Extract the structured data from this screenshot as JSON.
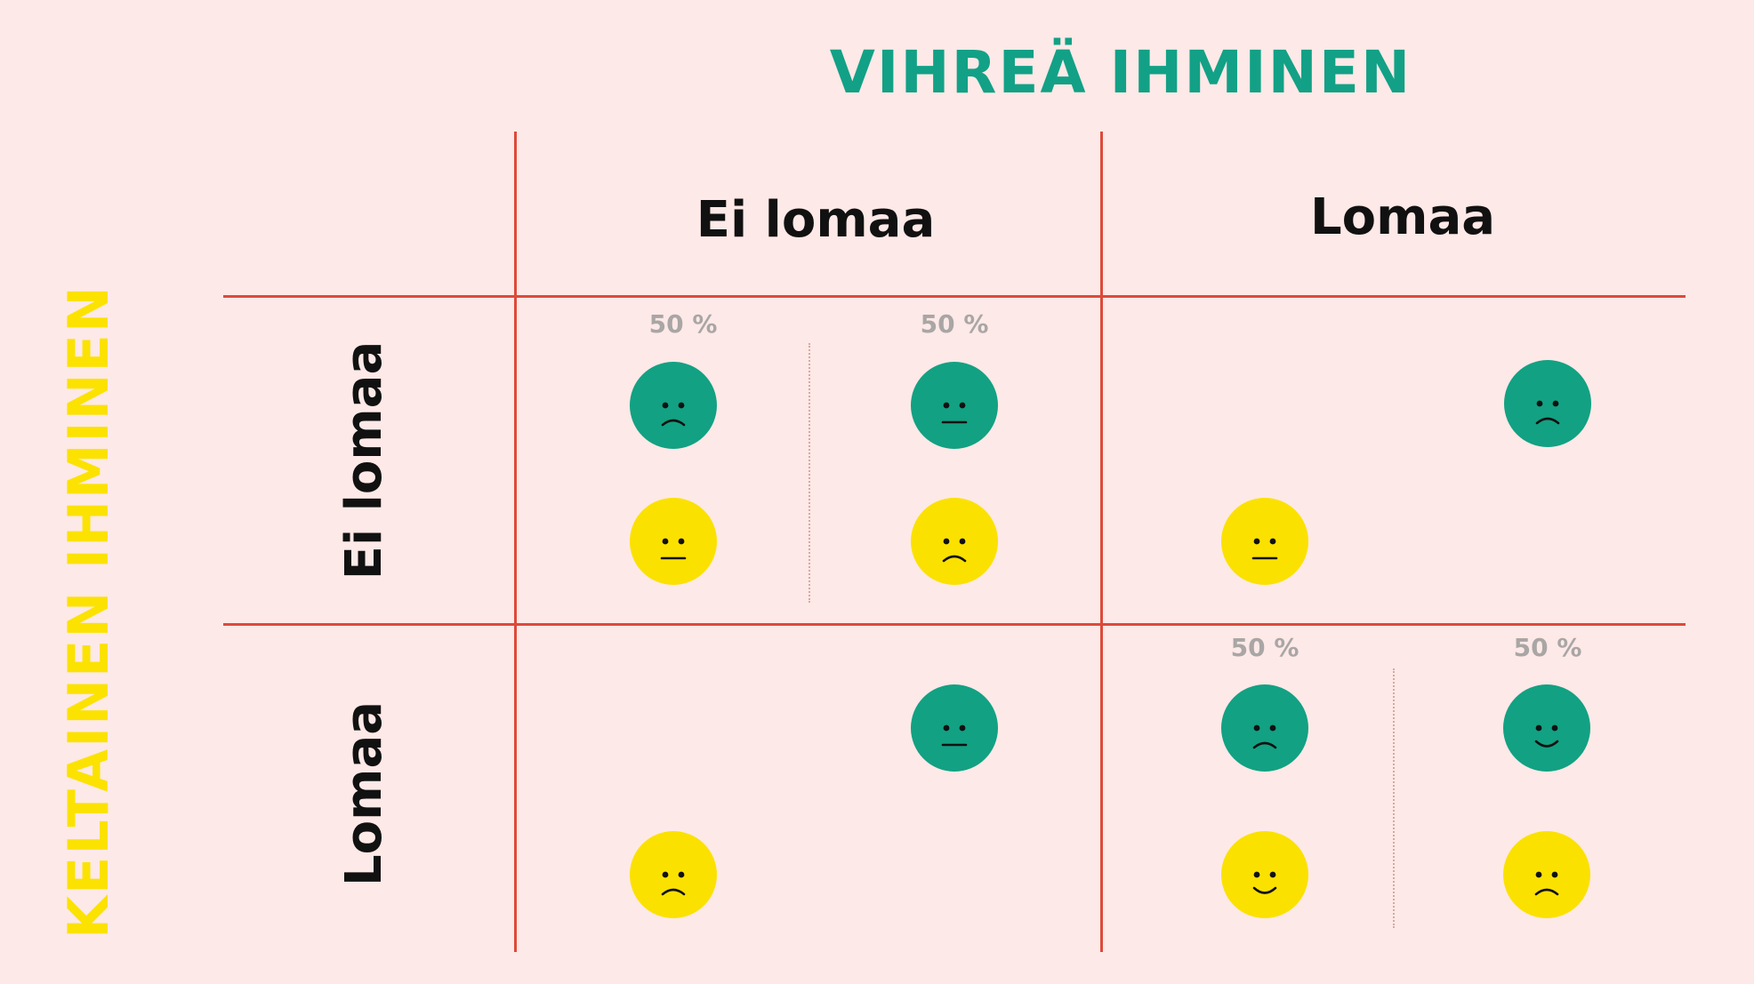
{
  "titles": {
    "top": "VIHREÄ IHMINEN",
    "left": "KELTAINEN IHMINEN"
  },
  "columns": [
    "Ei lomaa",
    "Lomaa"
  ],
  "rows": [
    "Ei lomaa",
    "Lomaa"
  ],
  "colors": {
    "background": "#fde9e7",
    "grid": "#dd4a3a",
    "green": "#12a183",
    "yellow": "#fbe100",
    "percent": "#a9a6a5"
  },
  "cells": [
    {
      "row": "Ei lomaa",
      "col": "Ei lomaa",
      "outcomes": [
        {
          "probability": "50 %",
          "green_face": "sad",
          "yellow_face": "neutral"
        },
        {
          "probability": "50 %",
          "green_face": "neutral",
          "yellow_face": "sad"
        }
      ]
    },
    {
      "row": "Ei lomaa",
      "col": "Lomaa",
      "outcomes": [
        {
          "probability": "",
          "green_face": "sad",
          "yellow_face": "neutral"
        }
      ]
    },
    {
      "row": "Lomaa",
      "col": "Ei lomaa",
      "outcomes": [
        {
          "probability": "",
          "green_face": "neutral",
          "yellow_face": "sad"
        }
      ]
    },
    {
      "row": "Lomaa",
      "col": "Lomaa",
      "outcomes": [
        {
          "probability": "50 %",
          "green_face": "sad",
          "yellow_face": "happy"
        },
        {
          "probability": "50 %",
          "green_face": "happy",
          "yellow_face": "sad"
        }
      ]
    }
  ]
}
